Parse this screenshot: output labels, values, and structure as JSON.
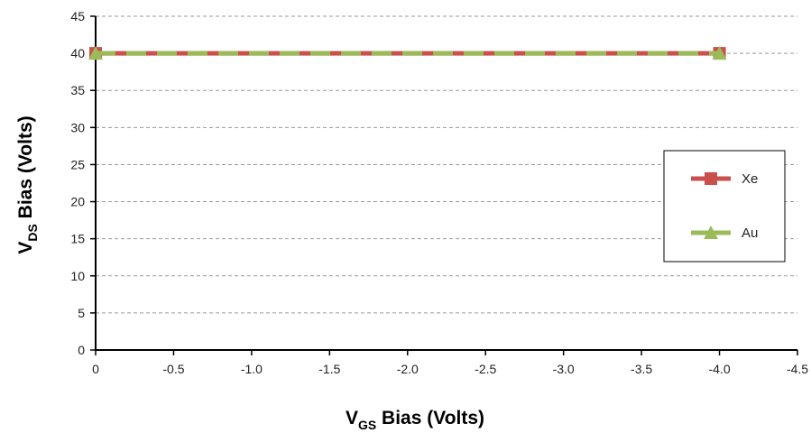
{
  "chart_data": {
    "type": "line",
    "x": [
      0,
      -4.0
    ],
    "series": [
      {
        "name": "Xe",
        "values": [
          40,
          40
        ],
        "color": "#c9504c",
        "marker": "square",
        "style": "solid"
      },
      {
        "name": "Au",
        "values": [
          40,
          40
        ],
        "color": "#9bbb59",
        "marker": "triangle",
        "style": "dashed"
      }
    ],
    "xlabel": {
      "main": "V",
      "sub": "GS",
      "rest": " Bias (Volts)"
    },
    "ylabel": {
      "main": "V",
      "sub": "DS",
      "rest": " Bias (Volts)"
    },
    "xlim": [
      0,
      -4.5
    ],
    "ylim": [
      0,
      45
    ],
    "xticks": [
      0,
      -0.5,
      -1.0,
      -1.5,
      -2.0,
      -2.5,
      -3.0,
      -3.5,
      -4.0,
      -4.5
    ],
    "xtick_labels": [
      "0",
      "-0.5",
      "-1.0",
      "-1.5",
      "-2.0",
      "-2.5",
      "-3.0",
      "-3.5",
      "-4.0",
      "-4.5"
    ],
    "yticks": [
      0,
      5,
      10,
      15,
      20,
      25,
      30,
      35,
      40,
      45
    ],
    "ytick_labels": [
      "0",
      "5",
      "10",
      "15",
      "20",
      "25",
      "30",
      "35",
      "40",
      "45"
    ],
    "grid": "horizontal dashed",
    "legend_position": "right"
  }
}
